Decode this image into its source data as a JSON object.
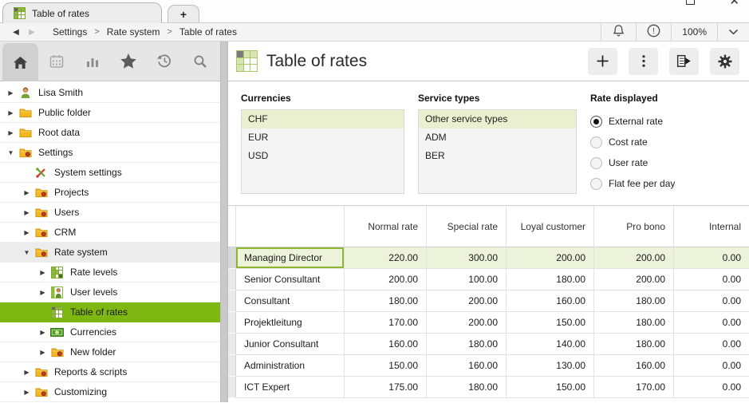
{
  "colors": {
    "accent_green": "#7eb712",
    "selected_row_bg": "#edf2da",
    "selected_list_bg": "#e9efcf",
    "selected_cell_border": "#8cb62e"
  },
  "window_controls": {
    "maximize": "maximize",
    "close": "close"
  },
  "tab_bar": {
    "tabs": [
      {
        "label": "Table of rates",
        "icon": "table",
        "active": true
      }
    ],
    "new_tab_label": "+"
  },
  "breadcrumb_bar": {
    "separator": ">",
    "crumbs": [
      "Settings",
      "Rate system",
      "Table of rates"
    ],
    "zoom_level": "100%"
  },
  "sidebar": {
    "toolbar": [
      {
        "name": "home",
        "active": true
      },
      {
        "name": "calendar",
        "active": false
      },
      {
        "name": "bar-chart",
        "active": false
      },
      {
        "name": "star",
        "active": false
      },
      {
        "name": "history",
        "active": false
      },
      {
        "name": "search",
        "active": false
      }
    ],
    "tree": [
      {
        "label": "Lisa Smith",
        "level": 0,
        "expander": "collapsed",
        "icon": "user",
        "state": ""
      },
      {
        "label": "Public folder",
        "level": 0,
        "expander": "collapsed",
        "icon": "folder",
        "state": ""
      },
      {
        "label": "Root data",
        "level": 0,
        "expander": "collapsed",
        "icon": "folder",
        "state": ""
      },
      {
        "label": "Settings",
        "level": 0,
        "expander": "expanded",
        "icon": "settings-folder",
        "state": ""
      },
      {
        "label": "System settings",
        "level": 1,
        "expander": "none",
        "icon": "tools",
        "state": ""
      },
      {
        "label": "Projects",
        "level": 1,
        "expander": "collapsed",
        "icon": "settings-folder",
        "state": ""
      },
      {
        "label": "Users",
        "level": 1,
        "expander": "collapsed",
        "icon": "settings-folder",
        "state": ""
      },
      {
        "label": "CRM",
        "level": 1,
        "expander": "collapsed",
        "icon": "settings-folder",
        "state": ""
      },
      {
        "label": "Rate system",
        "level": 1,
        "expander": "expanded",
        "icon": "settings-folder",
        "state": "hover"
      },
      {
        "label": "Rate levels",
        "level": 2,
        "expander": "collapsed",
        "icon": "rate-levels",
        "state": ""
      },
      {
        "label": "User levels",
        "level": 2,
        "expander": "collapsed",
        "icon": "user-levels",
        "state": ""
      },
      {
        "label": "Table of rates",
        "level": 2,
        "expander": "none",
        "icon": "table",
        "state": "selected"
      },
      {
        "label": "Currencies",
        "level": 2,
        "expander": "collapsed",
        "icon": "banknote",
        "state": ""
      },
      {
        "label": "New folder",
        "level": 2,
        "expander": "collapsed",
        "icon": "settings-folder",
        "state": ""
      },
      {
        "label": "Reports & scripts",
        "level": 1,
        "expander": "collapsed",
        "icon": "settings-folder",
        "state": ""
      },
      {
        "label": "Customizing",
        "level": 1,
        "expander": "collapsed",
        "icon": "settings-folder",
        "state": ""
      }
    ]
  },
  "main": {
    "header": {
      "title": "Table of rates",
      "icon": "table-lg",
      "buttons": [
        {
          "name": "add-item",
          "icon": "plus"
        },
        {
          "name": "more-actions",
          "icon": "kebab"
        },
        {
          "name": "print-report",
          "icon": "document-export"
        },
        {
          "name": "view-settings",
          "icon": "gear"
        }
      ]
    },
    "filters": {
      "currencies": {
        "label": "Currencies",
        "items": [
          "CHF",
          "EUR",
          "USD"
        ],
        "selected": "CHF"
      },
      "service_types": {
        "label": "Service types",
        "items": [
          "Other service types",
          "ADM",
          "BER"
        ],
        "selected": "Other service types"
      },
      "rate_displayed": {
        "label": "Rate displayed",
        "options": [
          "External rate",
          "Cost rate",
          "User rate",
          "Flat fee per day"
        ],
        "selected": "External rate"
      }
    },
    "rates_table": {
      "columns": [
        "",
        "Normal rate",
        "Special rate",
        "Loyal customer",
        "Pro bono",
        "Internal"
      ],
      "rows": [
        {
          "name": "Managing Director",
          "values": [
            "220.00",
            "300.00",
            "200.00",
            "200.00",
            "0.00"
          ],
          "selected": true
        },
        {
          "name": "Senior Consultant",
          "values": [
            "200.00",
            "100.00",
            "180.00",
            "200.00",
            "0.00"
          ],
          "selected": false
        },
        {
          "name": "Consultant",
          "values": [
            "180.00",
            "200.00",
            "160.00",
            "180.00",
            "0.00"
          ],
          "selected": false
        },
        {
          "name": "Projektleitung",
          "values": [
            "170.00",
            "200.00",
            "150.00",
            "180.00",
            "0.00"
          ],
          "selected": false
        },
        {
          "name": "Junior Consultant",
          "values": [
            "160.00",
            "180.00",
            "140.00",
            "180.00",
            "0.00"
          ],
          "selected": false
        },
        {
          "name": "Administration",
          "values": [
            "150.00",
            "160.00",
            "130.00",
            "160.00",
            "0.00"
          ],
          "selected": false
        },
        {
          "name": "ICT Expert",
          "values": [
            "175.00",
            "180.00",
            "150.00",
            "170.00",
            "0.00"
          ],
          "selected": false
        }
      ]
    }
  }
}
